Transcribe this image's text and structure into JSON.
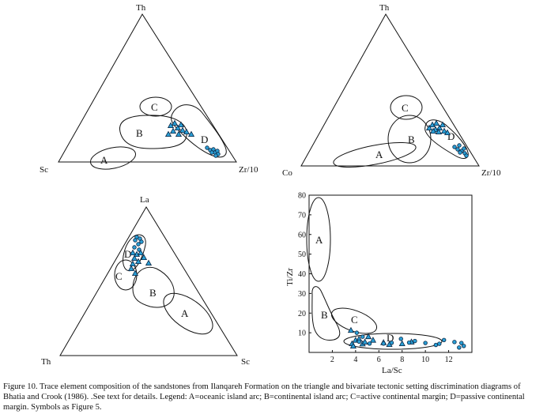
{
  "colors": {
    "ink": "#111111",
    "triangle_marker": "#2a9fd6",
    "circle_marker": "#2a9fd6",
    "marker_stroke": "#0b2440"
  },
  "diagrams": {
    "th_sc_zr": {
      "apex_top": "Th",
      "apex_left": "Sc",
      "apex_right": "Zr/10",
      "field_labels": [
        "A",
        "B",
        "C",
        "D"
      ]
    },
    "th_co_zr": {
      "apex_top": "Th",
      "apex_left": "Co",
      "apex_right": "Zr/10",
      "field_labels": [
        "A",
        "B",
        "C",
        "D"
      ]
    },
    "la_th_sc": {
      "apex_top": "La",
      "apex_left": "Th",
      "apex_right": "Sc",
      "field_labels": [
        "A",
        "B",
        "C",
        "D"
      ]
    },
    "ti_zr_vs_la_sc": {
      "xlabel": "La/Sc",
      "ylabel": "Ti/Zr",
      "x_ticks": [
        "2",
        "4",
        "6",
        "8",
        "10",
        "12"
      ],
      "y_ticks": [
        "10",
        "20",
        "30",
        "40",
        "50",
        "60",
        "70",
        "80"
      ],
      "field_labels": [
        "A",
        "B",
        "C",
        "D"
      ]
    }
  },
  "chart_data": {
    "type": "scatter",
    "xlabel": "La/Sc",
    "ylabel": "Ti/Zr",
    "xlim": [
      0,
      14
    ],
    "ylim": [
      0,
      80
    ],
    "x_ticks": [
      2,
      4,
      6,
      8,
      10,
      12
    ],
    "y_ticks": [
      10,
      20,
      30,
      40,
      50,
      60,
      70,
      80
    ],
    "series": [
      {
        "marker": "triangle",
        "points": [
          [
            3.6,
            11.2
          ],
          [
            3.7,
            4.4
          ],
          [
            3.8,
            3.2
          ],
          [
            4.0,
            6.2
          ],
          [
            4.3,
            6.8
          ],
          [
            4.6,
            4.3
          ],
          [
            4.8,
            5.3
          ],
          [
            5.1,
            8.0
          ],
          [
            5.5,
            6.2
          ],
          [
            6.4,
            5.0
          ],
          [
            6.9,
            4.0
          ],
          [
            8.0,
            4.4
          ],
          [
            8.8,
            5.3
          ]
        ]
      },
      {
        "marker": "circle",
        "points": [
          [
            4.1,
            10.0
          ],
          [
            4.3,
            5.5
          ],
          [
            4.6,
            8.0
          ],
          [
            5.2,
            4.5
          ],
          [
            6.4,
            4.5
          ],
          [
            7.1,
            4.9
          ],
          [
            7.9,
            6.9
          ],
          [
            8.6,
            5.0
          ],
          [
            9.1,
            5.8
          ],
          [
            10.0,
            4.8
          ],
          [
            10.9,
            3.8
          ],
          [
            11.2,
            4.4
          ],
          [
            11.6,
            6.3
          ],
          [
            12.5,
            5.3
          ],
          [
            13.1,
            4.8
          ],
          [
            13.3,
            3.3
          ],
          [
            12.9,
            2.5
          ]
        ]
      }
    ]
  },
  "caption": "Figure 10. Trace element composition of the sandstones from Ilanqareh Formation on the triangle and bivariate tectonic setting discrimination diagrams of Bhatia and Crook (1986). .See text for details. Legend: A=oceanic island arc; B=continental island arc; C=active continental margin; D=passive continental margin. Symbols as Figure 5."
}
